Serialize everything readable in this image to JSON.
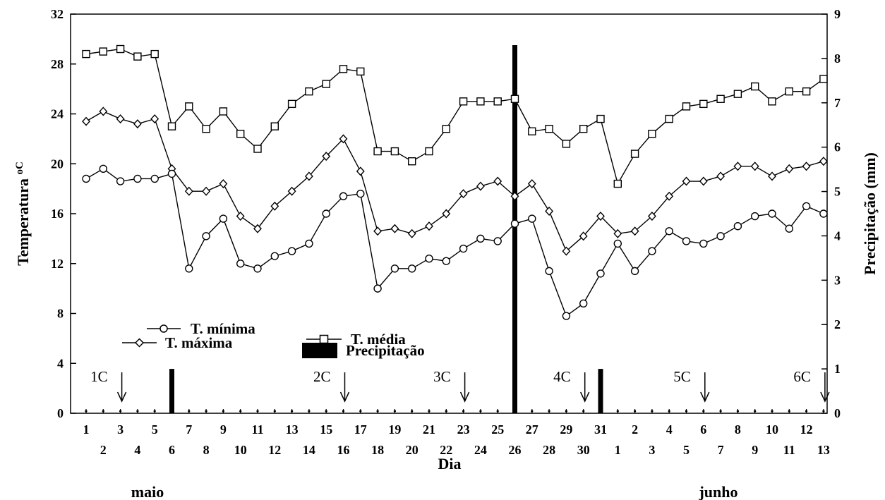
{
  "chart_data": {
    "type": "line",
    "ylabel_left": "Temperatura",
    "ylabel_left_unit": "oC",
    "ylabel_right": "Precipitação (mm)",
    "xlabel": "Dia",
    "month_labels": [
      "maio",
      "junho"
    ],
    "ylim_left": [
      0,
      32
    ],
    "yticks_left": [
      0,
      4,
      8,
      12,
      16,
      20,
      24,
      28,
      32
    ],
    "ylim_right": [
      0,
      9
    ],
    "yticks_right": [
      0,
      1,
      2,
      3,
      4,
      5,
      6,
      7,
      8,
      9
    ],
    "x_tick_labels": [
      "1",
      "2",
      "3",
      "4",
      "5",
      "6",
      "7",
      "8",
      "9",
      "10",
      "11",
      "12",
      "13",
      "14",
      "15",
      "16",
      "17",
      "18",
      "19",
      "20",
      "21",
      "22",
      "23",
      "24",
      "25",
      "26",
      "27",
      "28",
      "29",
      "30",
      "31",
      "1",
      "2",
      "3",
      "4",
      "5",
      "6",
      "7",
      "8",
      "9",
      "10",
      "11",
      "12",
      "13"
    ],
    "grid": false,
    "series": [
      {
        "name": "T. média",
        "marker": "square",
        "values": [
          28.8,
          29.0,
          29.2,
          28.6,
          28.8,
          23.0,
          24.6,
          22.8,
          24.2,
          22.4,
          21.2,
          23.0,
          24.8,
          25.8,
          26.4,
          27.6,
          27.4,
          21.0,
          21.0,
          20.2,
          21.0,
          22.8,
          25.0,
          25.0,
          25.0,
          25.2,
          22.6,
          22.8,
          21.6,
          22.8,
          23.6,
          18.4,
          20.8,
          22.4,
          23.6,
          24.6,
          24.8,
          25.2,
          25.6,
          26.2,
          25.0,
          25.8,
          25.8,
          26.8
        ]
      },
      {
        "name": "T. máxima",
        "marker": "diamond",
        "values": [
          23.4,
          24.2,
          23.6,
          23.2,
          23.6,
          19.6,
          17.8,
          17.8,
          18.4,
          15.8,
          14.8,
          16.6,
          17.8,
          19.0,
          20.6,
          22.0,
          19.4,
          14.6,
          14.8,
          14.4,
          15.0,
          16.0,
          17.6,
          18.2,
          18.6,
          17.4,
          18.4,
          16.2,
          13.0,
          14.2,
          15.8,
          14.4,
          14.6,
          15.8,
          17.4,
          18.6,
          18.6,
          19.0,
          19.8,
          19.8,
          19.0,
          19.6,
          19.8,
          20.2
        ]
      },
      {
        "name": "T. mínima",
        "marker": "circle",
        "values": [
          18.8,
          19.6,
          18.6,
          18.8,
          18.8,
          19.2,
          11.6,
          14.2,
          15.6,
          12.0,
          11.6,
          12.6,
          13.0,
          13.6,
          16.0,
          17.4,
          17.6,
          10.0,
          11.6,
          11.6,
          12.4,
          12.2,
          13.2,
          14.0,
          13.8,
          15.2,
          15.6,
          11.4,
          7.8,
          8.8,
          11.2,
          13.6,
          11.4,
          13.0,
          14.6,
          13.8,
          13.6,
          14.2,
          15.0,
          15.8,
          16.0,
          14.8,
          16.6,
          16.0
        ]
      },
      {
        "name": "Precipitação",
        "type": "bar",
        "axis": "right",
        "values": [
          0,
          0,
          0,
          0,
          0,
          1.0,
          0,
          0,
          0,
          0,
          0,
          0,
          0,
          0,
          0,
          0,
          0,
          0,
          0,
          0,
          0,
          0,
          0,
          0,
          0,
          8.3,
          0,
          0,
          0,
          0,
          1.0,
          0,
          0,
          0,
          0,
          0,
          0,
          0,
          0,
          0,
          0,
          0,
          0,
          0
        ]
      }
    ],
    "annotations": [
      {
        "label": "1C",
        "day_index": 3
      },
      {
        "label": "2C",
        "day_index": 16
      },
      {
        "label": "3C",
        "day_index": 23
      },
      {
        "label": "4C",
        "day_index": 30
      },
      {
        "label": "5C",
        "day_index": 37
      },
      {
        "label": "6C",
        "day_index": 44
      }
    ]
  }
}
